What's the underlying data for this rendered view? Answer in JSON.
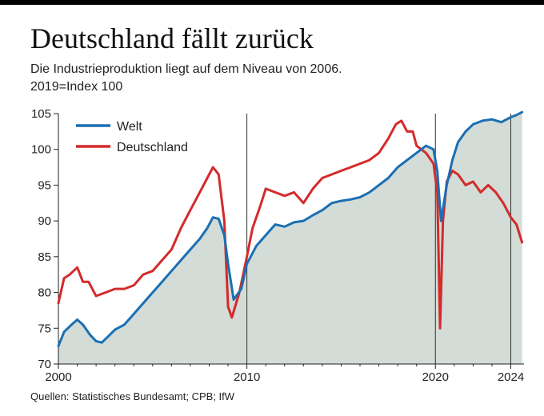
{
  "header": {
    "title": "Deutschland fällt zurück",
    "subtitle": "Die Industrieproduktion liegt auf dem Niveau von 2006.",
    "index_note": "2019=Index 100"
  },
  "footer": {
    "source": "Quellen: Statistisches Bundesamt; CPB; IfW"
  },
  "colors": {
    "welt": "#1a6fb3",
    "deutschland": "#d42a2a",
    "area": "#d3dcd6",
    "marker": "#333333"
  },
  "chart_data": {
    "type": "line",
    "title": "Deutschland fällt zurück",
    "xlabel": "",
    "ylabel": "2019=Index 100",
    "xlim": [
      2000,
      2024.7
    ],
    "ylim": [
      70,
      105
    ],
    "x_ticks": [
      "2000",
      "2010",
      "2020",
      "2024"
    ],
    "x_tick_values": [
      2000,
      2010,
      2020,
      2024
    ],
    "y_ticks": [
      "105",
      "100",
      "95",
      "90",
      "85",
      "80",
      "75",
      "70"
    ],
    "y_tick_values": [
      105,
      100,
      95,
      90,
      85,
      80,
      75,
      70
    ],
    "reference_lines": [
      2010,
      2020,
      2024
    ],
    "legend": [
      "Welt",
      "Deutschland"
    ],
    "series": [
      {
        "name": "Welt",
        "x": [
          2000,
          2000.3,
          2000.7,
          2001,
          2001.3,
          2001.7,
          2002,
          2002.3,
          2002.7,
          2003,
          2003.5,
          2004,
          2004.5,
          2005,
          2005.5,
          2006,
          2006.5,
          2007,
          2007.5,
          2007.9,
          2008.2,
          2008.5,
          2008.8,
          2009,
          2009.3,
          2009.7,
          2010,
          2010.5,
          2011,
          2011.5,
          2012,
          2012.5,
          2013,
          2013.5,
          2014,
          2014.5,
          2015,
          2015.5,
          2016,
          2016.5,
          2017,
          2017.5,
          2018,
          2018.5,
          2019,
          2019.5,
          2019.9,
          2020.1,
          2020.3,
          2020.6,
          2020.9,
          2021.2,
          2021.6,
          2022,
          2022.5,
          2023,
          2023.5,
          2024,
          2024.3,
          2024.6
        ],
        "values": [
          72.5,
          74.5,
          75.5,
          76.2,
          75.5,
          74,
          73.2,
          73,
          74,
          74.8,
          75.5,
          77,
          78.5,
          80,
          81.5,
          83,
          84.5,
          86,
          87.5,
          89,
          90.5,
          90.3,
          88,
          84,
          79,
          80.5,
          84,
          86.5,
          88,
          89.5,
          89.2,
          89.8,
          90,
          90.8,
          91.5,
          92.5,
          92.8,
          93,
          93.3,
          94,
          95,
          96,
          97.5,
          98.5,
          99.5,
          100.5,
          100,
          97,
          90,
          95,
          98.5,
          101,
          102.5,
          103.5,
          104,
          104.2,
          103.8,
          104.5,
          104.8,
          105.2
        ]
      },
      {
        "name": "Deutschland",
        "x": [
          2000,
          2000.3,
          2000.6,
          2001,
          2001.3,
          2001.6,
          2002,
          2002.5,
          2003,
          2003.5,
          2004,
          2004.5,
          2005,
          2005.5,
          2006,
          2006.5,
          2007,
          2007.5,
          2007.9,
          2008.2,
          2008.5,
          2008.8,
          2009,
          2009.2,
          2009.6,
          2010,
          2010.3,
          2010.7,
          2011,
          2011.5,
          2012,
          2012.5,
          2013,
          2013.5,
          2014,
          2014.5,
          2015,
          2015.5,
          2016,
          2016.5,
          2017,
          2017.5,
          2017.9,
          2018.2,
          2018.5,
          2018.8,
          2019,
          2019.5,
          2019.9,
          2020.1,
          2020.25,
          2020.4,
          2020.6,
          2020.9,
          2021.2,
          2021.6,
          2022,
          2022.4,
          2022.8,
          2023.2,
          2023.6,
          2024,
          2024.3,
          2024.6
        ],
        "values": [
          78.5,
          82,
          82.5,
          83.5,
          81.5,
          81.5,
          79.5,
          80,
          80.5,
          80.5,
          81,
          82.5,
          83,
          84.5,
          86,
          89,
          91.5,
          94,
          96,
          97.5,
          96.5,
          90,
          78,
          76.5,
          80,
          85,
          89,
          92,
          94.5,
          94,
          93.5,
          94,
          92.5,
          94.5,
          96,
          96.5,
          97,
          97.5,
          98,
          98.5,
          99.5,
          101.5,
          103.5,
          104,
          102.5,
          102.5,
          100.5,
          99.5,
          98,
          94,
          75,
          90,
          95.5,
          97,
          96.5,
          95,
          95.5,
          94,
          95,
          94,
          92.5,
          90.5,
          89.5,
          87
        ]
      }
    ]
  }
}
